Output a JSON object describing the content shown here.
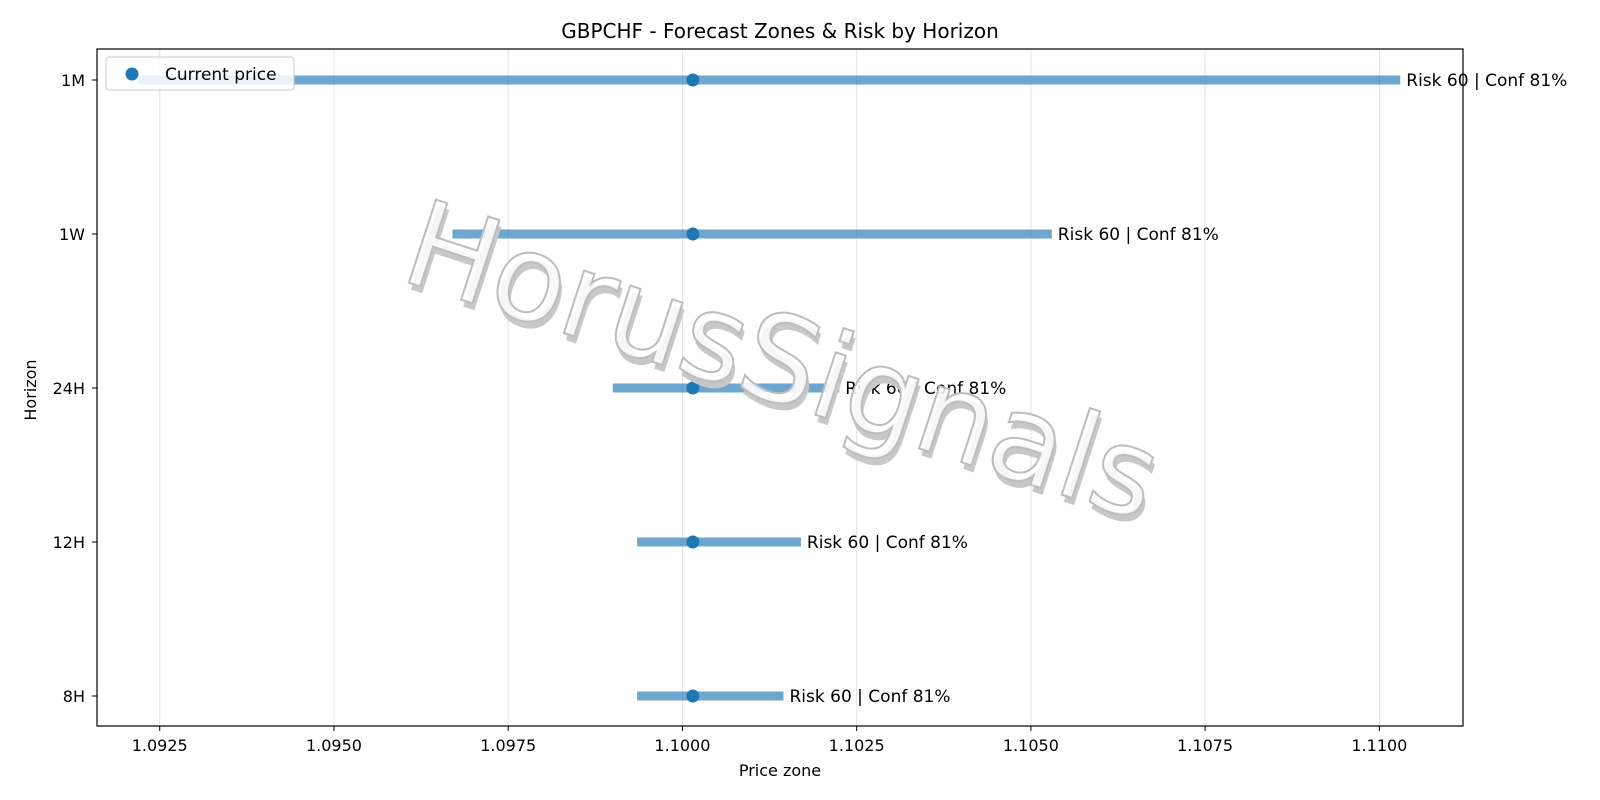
{
  "chart_data": {
    "type": "range",
    "title": "GBPCHF - Forecast Zones & Risk by Horizon",
    "xlabel": "Price zone",
    "ylabel": "Horizon",
    "xlim": [
      1.0916,
      1.1112
    ],
    "x_ticks": [
      "1.0925",
      "1.0950",
      "1.0975",
      "1.1000",
      "1.1025",
      "1.1050",
      "1.1075",
      "1.1100"
    ],
    "x_tick_values": [
      1.0925,
      1.095,
      1.0975,
      1.1,
      1.1025,
      1.105,
      1.1075,
      1.11
    ],
    "categories": [
      "8H",
      "12H",
      "24H",
      "1W",
      "1M"
    ],
    "current_price": 1.10015,
    "zones": [
      {
        "horizon": "8H",
        "low": 1.09935,
        "high": 1.10145,
        "label": "Risk 60 | Conf 81%"
      },
      {
        "horizon": "12H",
        "low": 1.09935,
        "high": 1.1017,
        "label": "Risk 60 | Conf 81%"
      },
      {
        "horizon": "24H",
        "low": 1.099,
        "high": 1.10225,
        "label": "Risk 60 | Conf 81%"
      },
      {
        "horizon": "1W",
        "low": 1.0967,
        "high": 1.1053,
        "label": "Risk 60 | Conf 81%"
      },
      {
        "horizon": "1M",
        "low": 1.0922,
        "high": 1.1103,
        "label": "Risk 60 | Conf 81%"
      }
    ],
    "legend": {
      "label": "Current price",
      "placement": "top-left"
    },
    "grid": "x",
    "colors": {
      "zone": "#1f77b4",
      "point": "#1f77b4"
    },
    "watermark": "HorusSignals"
  }
}
